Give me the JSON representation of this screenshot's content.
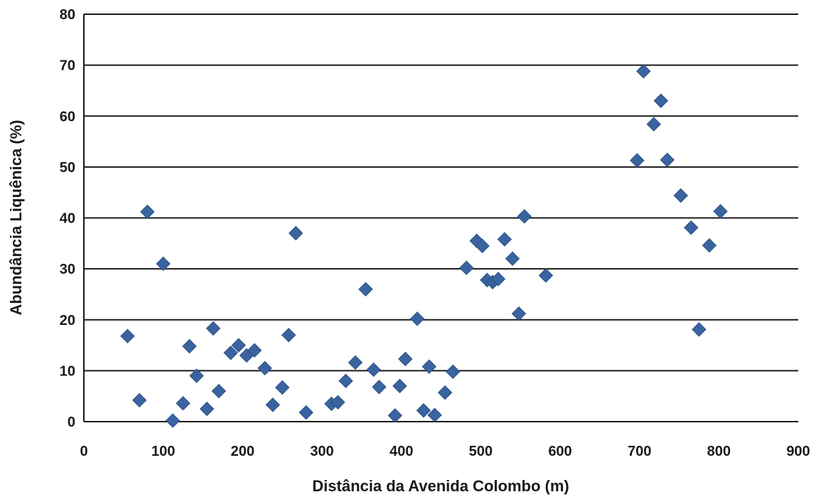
{
  "chart_data": {
    "type": "scatter",
    "title": "",
    "xlabel": "Distância da Avenida Colombo (m)",
    "ylabel": "Abundância Liquênica (%)",
    "xlim": [
      0,
      900
    ],
    "ylim": [
      0,
      80
    ],
    "x_ticks": [
      "0",
      "100",
      "200",
      "300",
      "400",
      "500",
      "600",
      "700",
      "800",
      "900"
    ],
    "y_ticks": [
      "0",
      "10",
      "20",
      "30",
      "40",
      "50",
      "60",
      "70",
      "80"
    ],
    "grid": "horizontal",
    "legend": "none",
    "marker": "diamond",
    "marker_color": "#3a64a0",
    "points": [
      {
        "x": 55,
        "y": 16.8
      },
      {
        "x": 70,
        "y": 4.2
      },
      {
        "x": 80,
        "y": 41.2
      },
      {
        "x": 100,
        "y": 31
      },
      {
        "x": 112,
        "y": 0.2
      },
      {
        "x": 125,
        "y": 3.6
      },
      {
        "x": 133,
        "y": 14.8
      },
      {
        "x": 142,
        "y": 9
      },
      {
        "x": 155,
        "y": 2.5
      },
      {
        "x": 163,
        "y": 18.3
      },
      {
        "x": 170,
        "y": 6
      },
      {
        "x": 185,
        "y": 13.5
      },
      {
        "x": 195,
        "y": 15
      },
      {
        "x": 205,
        "y": 13
      },
      {
        "x": 215,
        "y": 14
      },
      {
        "x": 228,
        "y": 10.5
      },
      {
        "x": 238,
        "y": 3.3
      },
      {
        "x": 250,
        "y": 6.7
      },
      {
        "x": 258,
        "y": 17
      },
      {
        "x": 267,
        "y": 37
      },
      {
        "x": 280,
        "y": 1.8
      },
      {
        "x": 312,
        "y": 3.5
      },
      {
        "x": 320,
        "y": 3.8
      },
      {
        "x": 330,
        "y": 8
      },
      {
        "x": 342,
        "y": 11.6
      },
      {
        "x": 355,
        "y": 26
      },
      {
        "x": 365,
        "y": 10.2
      },
      {
        "x": 372,
        "y": 6.8
      },
      {
        "x": 392,
        "y": 1.2
      },
      {
        "x": 398,
        "y": 7
      },
      {
        "x": 405,
        "y": 12.3
      },
      {
        "x": 420,
        "y": 20.2
      },
      {
        "x": 428,
        "y": 2.2
      },
      {
        "x": 435,
        "y": 10.8
      },
      {
        "x": 442,
        "y": 1.3
      },
      {
        "x": 455,
        "y": 5.7
      },
      {
        "x": 465,
        "y": 9.8
      },
      {
        "x": 482,
        "y": 30.2
      },
      {
        "x": 495,
        "y": 35.5
      },
      {
        "x": 502,
        "y": 34.5
      },
      {
        "x": 508,
        "y": 27.8
      },
      {
        "x": 515,
        "y": 27.4
      },
      {
        "x": 522,
        "y": 28
      },
      {
        "x": 530,
        "y": 35.8
      },
      {
        "x": 540,
        "y": 32
      },
      {
        "x": 548,
        "y": 21.2
      },
      {
        "x": 555,
        "y": 40.3
      },
      {
        "x": 582,
        "y": 28.7
      },
      {
        "x": 697,
        "y": 51.3
      },
      {
        "x": 705,
        "y": 68.8
      },
      {
        "x": 718,
        "y": 58.4
      },
      {
        "x": 727,
        "y": 63
      },
      {
        "x": 735,
        "y": 51.4
      },
      {
        "x": 752,
        "y": 44.4
      },
      {
        "x": 765,
        "y": 38.1
      },
      {
        "x": 775,
        "y": 18.1
      },
      {
        "x": 788,
        "y": 34.6
      },
      {
        "x": 802,
        "y": 41.3
      }
    ]
  }
}
